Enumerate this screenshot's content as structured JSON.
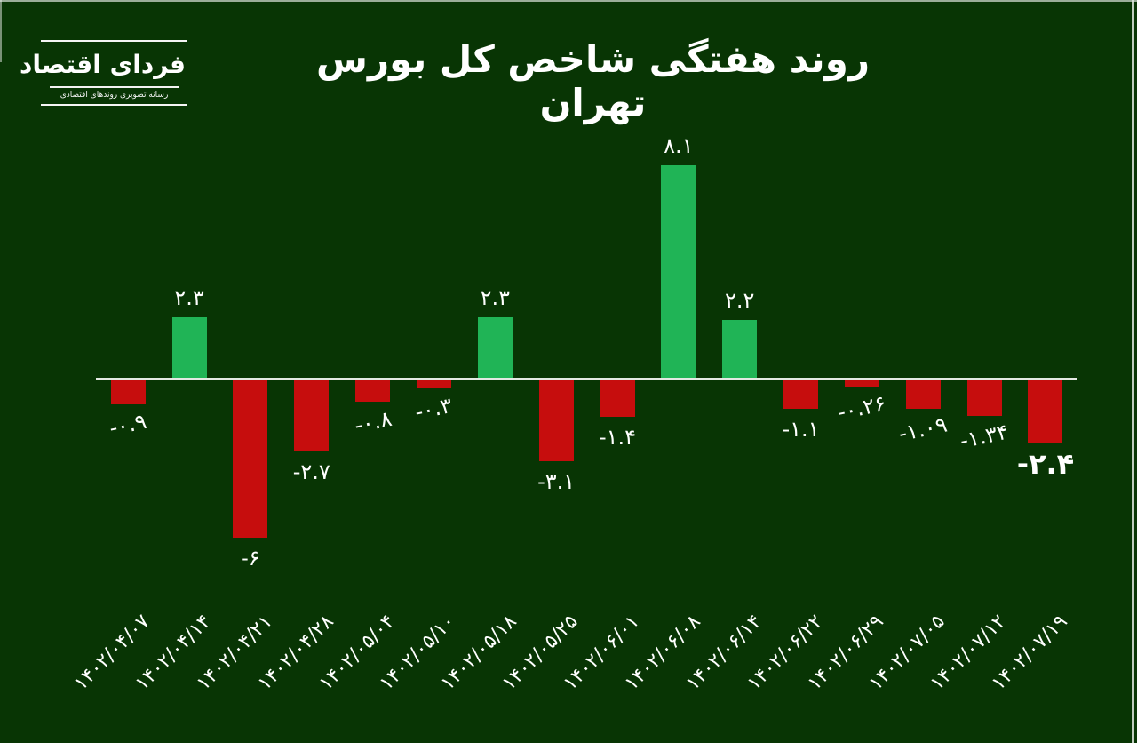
{
  "page": {
    "background_color": "#083504",
    "frame_line_color": "#e1e7e1"
  },
  "logo": {
    "title": "فردای اقتصاد",
    "subtitle": "رسانه تصویری روندهای اقتصادی"
  },
  "chart_data": {
    "type": "bar",
    "title": "روند هفتگی شاخص کل بورس تهران",
    "xlabel": "",
    "ylabel": "",
    "unit": "percent (weekly change)",
    "categories": [
      "۱۴۰۲/۰۴/۰۷",
      "۱۴۰۲/۰۴/۱۴",
      "۱۴۰۲/۰۴/۲۱",
      "۱۴۰۲/۰۴/۲۸",
      "۱۴۰۲/۰۵/۰۴",
      "۱۴۰۲/۰۵/۱۰",
      "۱۴۰۲/۰۵/۱۸",
      "۱۴۰۲/۰۵/۲۵",
      "۱۴۰۲/۰۶/۰۱",
      "۱۴۰۲/۰۶/۰۸",
      "۱۴۰۲/۰۶/۱۴",
      "۱۴۰۲/۰۶/۲۲",
      "۱۴۰۲/۰۶/۲۹",
      "۱۴۰۲/۰۷/۰۵",
      "۱۴۰۲/۰۷/۱۲",
      "۱۴۰۲/۰۷/۱۹"
    ],
    "values": [
      -0.9,
      2.3,
      -6,
      -2.7,
      -0.8,
      -0.3,
      2.3,
      -3.1,
      -1.4,
      8.1,
      2.2,
      -1.1,
      -0.26,
      -1.09,
      -1.34,
      -2.4
    ],
    "value_labels": [
      "-۰.۹",
      "۲.۳",
      "-۶",
      "-۲.۷",
      "-۰.۸",
      "-۰.۳",
      "۲.۳",
      "-۳.۱",
      "-۱.۴",
      "۸.۱",
      "۲.۲",
      "-۱.۱",
      "-۰.۲۶",
      "-۱.۰۹",
      "-۱.۳۴",
      "-۲.۴"
    ],
    "positive_color": "#20b456",
    "negative_color": "#c60d0d",
    "baseline_color": "#e4e9e4",
    "text_color": "#ffffff",
    "ylim": [
      -6.5,
      8.5
    ],
    "grid": false,
    "legend": false,
    "x_tick_rotation_deg": 45,
    "tilted_label_indices": [
      0,
      4,
      5,
      12,
      13,
      14
    ],
    "highlight_last_label": true
  }
}
